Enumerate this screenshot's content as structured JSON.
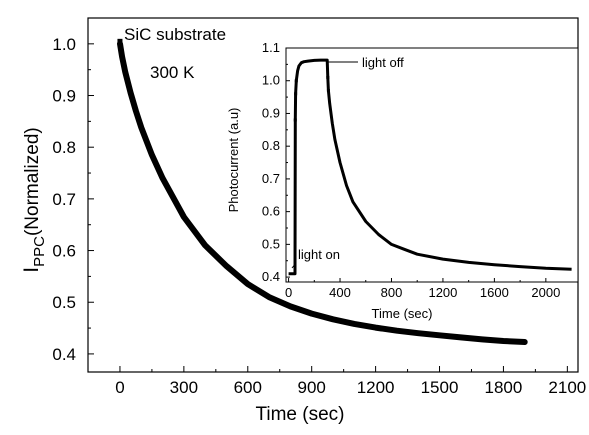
{
  "chart_data": [
    {
      "id": "main",
      "type": "line",
      "title": "",
      "xlabel": "Time (sec)",
      "ylabel_main": "I",
      "ylabel_sub": "PPC",
      "ylabel_rest": "(Normalized)",
      "xlim": [
        -150,
        2150
      ],
      "ylim": [
        0.365,
        1.05
      ],
      "xticks": [
        0,
        300,
        600,
        900,
        1200,
        1500,
        1800,
        2100
      ],
      "xtick_labels": [
        "0",
        "300",
        "600",
        "900",
        "1200",
        "1500",
        "1800",
        "2100"
      ],
      "yticks": [
        0.4,
        0.5,
        0.6,
        0.7,
        0.8,
        0.9,
        1.0
      ],
      "ytick_labels": [
        "0.4",
        "0.5",
        "0.6",
        "0.7",
        "0.8",
        "0.9",
        "1.0"
      ],
      "grid": false,
      "annotations": [
        "SiC substrate",
        "300 K"
      ],
      "series": [
        {
          "x": [
            0,
            10,
            25,
            50,
            75,
            100,
            150,
            200,
            300,
            400,
            500,
            600,
            700,
            800,
            900,
            1000,
            1100,
            1200,
            1300,
            1400,
            1500,
            1600,
            1700,
            1800,
            1900
          ],
          "y": [
            1.0,
            0.975,
            0.945,
            0.905,
            0.87,
            0.838,
            0.785,
            0.74,
            0.665,
            0.61,
            0.57,
            0.535,
            0.51,
            0.492,
            0.478,
            0.467,
            0.458,
            0.451,
            0.445,
            0.44,
            0.436,
            0.432,
            0.428,
            0.425,
            0.423
          ]
        }
      ]
    },
    {
      "id": "inset",
      "type": "line",
      "title": "",
      "xlabel": "Time (sec)",
      "ylabel": "Photocurrent (a.u)",
      "xlim": [
        -20,
        2250
      ],
      "ylim": [
        0.385,
        1.1
      ],
      "xticks": [
        0,
        400,
        800,
        1200,
        1600,
        2000
      ],
      "xtick_labels": [
        "0",
        "400",
        "800",
        "1200",
        "1600",
        "2000"
      ],
      "yticks": [
        0.4,
        0.5,
        0.6,
        0.7,
        0.8,
        0.9,
        1.0,
        1.1
      ],
      "ytick_labels": [
        "0.4",
        "0.5",
        "0.6",
        "0.7",
        "0.8",
        "0.9",
        "1.0",
        "1.1"
      ],
      "grid": false,
      "annotations": [
        "light on",
        "light off"
      ],
      "series": [
        {
          "x": [
            0,
            20,
            40,
            50,
            52,
            55,
            60,
            70,
            80,
            90,
            100,
            120,
            150,
            200,
            250,
            300,
            305,
            310,
            320,
            340,
            360,
            400,
            450,
            500,
            600,
            700,
            800,
            900,
            1000,
            1200,
            1400,
            1600,
            1800,
            2000,
            2200
          ],
          "y": [
            0.41,
            0.41,
            0.41,
            0.41,
            0.88,
            0.96,
            1.0,
            1.03,
            1.045,
            1.05,
            1.055,
            1.058,
            1.06,
            1.062,
            1.063,
            1.063,
            1.01,
            0.97,
            0.93,
            0.87,
            0.82,
            0.75,
            0.68,
            0.63,
            0.57,
            0.53,
            0.5,
            0.485,
            0.47,
            0.455,
            0.445,
            0.438,
            0.432,
            0.427,
            0.424
          ]
        }
      ]
    }
  ]
}
